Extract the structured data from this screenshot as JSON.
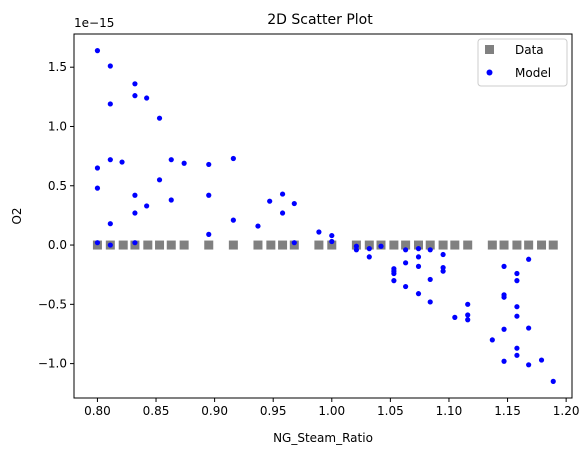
{
  "chart_data": {
    "type": "scatter",
    "title": "2D Scatter Plot",
    "xlabel": "NG_Steam_Ratio",
    "ylabel": "O2",
    "offset_text": "1e−15",
    "xlim": [
      0.78,
      1.205
    ],
    "ylim": [
      -1.29,
      1.78
    ],
    "xticks": [
      0.8,
      0.85,
      0.9,
      0.95,
      1.0,
      1.05,
      1.1,
      1.15,
      1.2
    ],
    "xtick_labels": [
      "0.80",
      "0.85",
      "0.90",
      "0.95",
      "1.00",
      "1.05",
      "1.10",
      "1.15",
      "1.20"
    ],
    "yticks": [
      -1.0,
      -0.5,
      0.0,
      0.5,
      1.0,
      1.5
    ],
    "ytick_labels": [
      "−1.0",
      "−0.5",
      "0.0",
      "0.5",
      "1.0",
      "1.5"
    ],
    "grid": false,
    "legend_position": "top-right",
    "series": [
      {
        "name": "Data",
        "marker": "square",
        "color": "#808080",
        "x": [
          0.8,
          0.811,
          0.822,
          0.832,
          0.843,
          0.853,
          0.863,
          0.874,
          0.895,
          0.916,
          0.937,
          0.948,
          0.958,
          0.968,
          0.989,
          1.0,
          1.021,
          1.032,
          1.042,
          1.053,
          1.063,
          1.074,
          1.084,
          1.095,
          1.105,
          1.116,
          1.137,
          1.147,
          1.158,
          1.168,
          1.179,
          1.189
        ],
        "y": [
          0,
          0,
          0,
          0,
          0,
          0,
          0,
          0,
          0,
          0,
          0,
          0,
          0,
          0,
          0,
          0,
          0,
          0,
          0,
          0,
          0,
          0,
          0,
          0,
          0,
          0,
          0,
          0,
          0,
          0,
          0,
          0
        ]
      },
      {
        "name": "Model",
        "marker": "circle",
        "color": "#0000ff",
        "x": [
          0.8,
          0.8,
          0.8,
          0.8,
          0.811,
          0.811,
          0.811,
          0.811,
          0.811,
          0.821,
          0.832,
          0.832,
          0.832,
          0.832,
          0.832,
          0.842,
          0.842,
          0.853,
          0.853,
          0.863,
          0.863,
          0.874,
          0.895,
          0.895,
          0.895,
          0.916,
          0.916,
          0.937,
          0.947,
          0.958,
          0.958,
          0.968,
          0.968,
          0.989,
          1.0,
          1.0,
          1.021,
          1.021,
          1.032,
          1.032,
          1.042,
          1.053,
          1.053,
          1.053,
          1.053,
          1.063,
          1.063,
          1.063,
          1.074,
          1.074,
          1.074,
          1.074,
          1.084,
          1.084,
          1.084,
          1.095,
          1.095,
          1.095,
          1.105,
          1.116,
          1.116,
          1.116,
          1.137,
          1.147,
          1.147,
          1.147,
          1.147,
          1.147,
          1.158,
          1.158,
          1.158,
          1.158,
          1.158,
          1.158,
          1.168,
          1.168,
          1.168,
          1.179,
          1.189
        ],
        "y": [
          1.64,
          0.65,
          0.48,
          0.02,
          1.51,
          1.19,
          0.72,
          0.18,
          0.0,
          0.7,
          1.36,
          1.26,
          0.42,
          0.27,
          0.02,
          1.24,
          0.33,
          1.07,
          0.55,
          0.72,
          0.38,
          0.69,
          0.68,
          0.42,
          0.09,
          0.73,
          0.21,
          0.16,
          0.37,
          0.43,
          0.27,
          0.35,
          0.02,
          0.11,
          0.08,
          0.03,
          -0.01,
          -0.04,
          -0.03,
          -0.1,
          -0.01,
          -0.2,
          -0.22,
          -0.24,
          -0.3,
          -0.04,
          -0.15,
          -0.35,
          -0.03,
          -0.1,
          -0.18,
          -0.41,
          -0.04,
          -0.29,
          -0.48,
          -0.08,
          -0.19,
          -0.22,
          -0.61,
          -0.5,
          -0.59,
          -0.63,
          -0.8,
          -0.18,
          -0.42,
          -0.44,
          -0.71,
          -0.98,
          -0.24,
          -0.3,
          -0.52,
          -0.6,
          -0.87,
          -0.93,
          -0.12,
          -0.7,
          -1.01,
          -0.97,
          -1.15
        ]
      }
    ]
  }
}
